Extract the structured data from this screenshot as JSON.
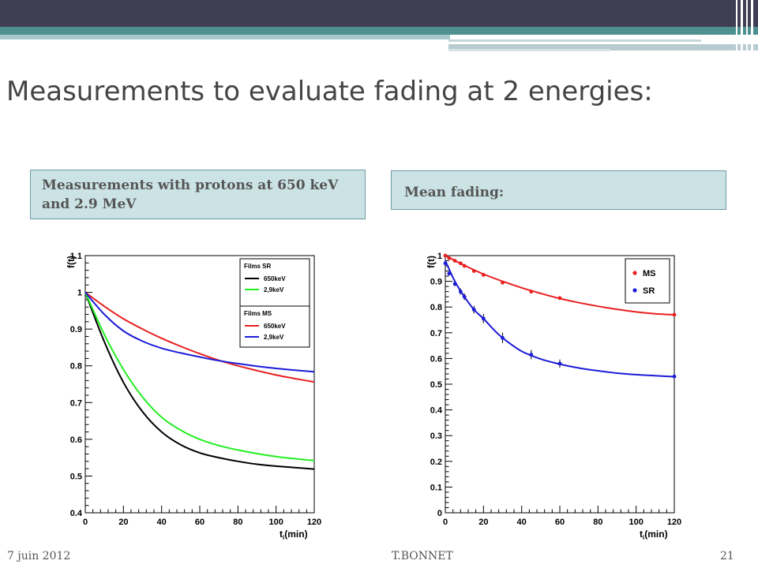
{
  "slide": {
    "title": "Measurements to evaluate fading at 2 energies:",
    "box_left": "Measurements with protons at 650 keV and 2.9 MeV",
    "box_right": "Mean fading:"
  },
  "footer": {
    "date": "7 juin 2012",
    "author": "T.BONNET",
    "page": "21"
  },
  "colors": {
    "topbar": "#3f3e52",
    "teal": "#4e8f8f",
    "box_fill": "#cce3e6",
    "black": "#000000",
    "green": "#22ee22",
    "red": "#e82020",
    "blue": "#1c1cd8"
  },
  "chart_data": [
    {
      "type": "line",
      "ylabel": "f(t)",
      "xlabel": "t_i(min)",
      "xlim": [
        0,
        120
      ],
      "ylim": [
        0.4,
        1.1
      ],
      "xticks": [
        "0",
        "20",
        "40",
        "60",
        "80",
        "100",
        "120"
      ],
      "yticks": [
        "0.4",
        "0.5",
        "0.6",
        "0.7",
        "0.8",
        "0.9",
        "1",
        "1.1"
      ],
      "legend_groups": [
        {
          "title": "Films SR",
          "entries": [
            "650keV",
            "2,9keV"
          ]
        },
        {
          "title": "Films MS",
          "entries": [
            "650keV",
            "2,9keV"
          ]
        }
      ],
      "series": [
        {
          "name": "650keV",
          "group": "Films SR",
          "color": "#000000",
          "x": [
            0,
            10,
            20,
            30,
            40,
            50,
            60,
            70,
            80,
            90,
            100,
            110,
            120
          ],
          "y": [
            1.0,
            0.865,
            0.755,
            0.675,
            0.62,
            0.585,
            0.563,
            0.55,
            0.54,
            0.532,
            0.527,
            0.523,
            0.519
          ]
        },
        {
          "name": "2,9keV",
          "group": "Films SR",
          "color": "#22ee22",
          "x": [
            0,
            10,
            20,
            30,
            40,
            50,
            60,
            70,
            80,
            90,
            100,
            110,
            120
          ],
          "y": [
            1.0,
            0.885,
            0.79,
            0.715,
            0.66,
            0.625,
            0.6,
            0.583,
            0.571,
            0.561,
            0.553,
            0.547,
            0.542
          ]
        },
        {
          "name": "650keV",
          "group": "Films MS",
          "color": "#e82020",
          "x": [
            0,
            10,
            20,
            30,
            40,
            50,
            60,
            70,
            80,
            90,
            100,
            110,
            120
          ],
          "y": [
            1.0,
            0.962,
            0.928,
            0.9,
            0.875,
            0.853,
            0.833,
            0.815,
            0.8,
            0.787,
            0.775,
            0.765,
            0.756
          ]
        },
        {
          "name": "2,9keV",
          "group": "Films MS",
          "color": "#1c1cd8",
          "x": [
            0,
            10,
            20,
            30,
            40,
            50,
            60,
            70,
            80,
            90,
            100,
            110,
            120
          ],
          "y": [
            1.0,
            0.94,
            0.895,
            0.867,
            0.848,
            0.835,
            0.824,
            0.814,
            0.806,
            0.799,
            0.793,
            0.788,
            0.784
          ]
        }
      ]
    },
    {
      "type": "scatter",
      "ylabel": "f(t)",
      "xlabel": "t_i(min)",
      "xlim": [
        0,
        120
      ],
      "ylim": [
        0,
        1
      ],
      "xticks": [
        "0",
        "20",
        "40",
        "60",
        "80",
        "100",
        "120"
      ],
      "yticks": [
        "0",
        "0.1",
        "0.2",
        "0.3",
        "0.4",
        "0.5",
        "0.6",
        "0.7",
        "0.8",
        "0.9",
        "1"
      ],
      "series": [
        {
          "name": "MS",
          "color": "#e82020",
          "x": [
            0,
            2,
            5,
            8,
            10,
            15,
            20,
            30,
            45,
            60,
            120
          ],
          "y": [
            1.0,
            0.99,
            0.98,
            0.97,
            0.96,
            0.94,
            0.925,
            0.895,
            0.86,
            0.835,
            0.77
          ],
          "err": [
            0.004,
            0.004,
            0.004,
            0.004,
            0.004,
            0.004,
            0.005,
            0.006,
            0.006,
            0.005,
            0.006
          ],
          "fit_x": [
            0,
            10,
            20,
            30,
            40,
            50,
            60,
            70,
            80,
            90,
            100,
            110,
            120
          ],
          "fit_y": [
            1.0,
            0.962,
            0.928,
            0.9,
            0.875,
            0.853,
            0.833,
            0.817,
            0.803,
            0.791,
            0.781,
            0.774,
            0.77
          ]
        },
        {
          "name": "SR",
          "color": "#1c1cd8",
          "x": [
            0,
            2,
            5,
            8,
            10,
            15,
            20,
            30,
            45,
            60,
            120
          ],
          "y": [
            0.97,
            0.93,
            0.89,
            0.86,
            0.84,
            0.79,
            0.755,
            0.68,
            0.615,
            0.58,
            0.53
          ],
          "err": [
            0.005,
            0.005,
            0.01,
            0.012,
            0.013,
            0.015,
            0.018,
            0.02,
            0.018,
            0.016,
            0.006
          ],
          "fit_x": [
            0,
            5,
            10,
            15,
            20,
            25,
            30,
            40,
            50,
            60,
            70,
            80,
            90,
            100,
            110,
            120
          ],
          "fit_y": [
            0.98,
            0.9,
            0.84,
            0.79,
            0.755,
            0.715,
            0.68,
            0.628,
            0.598,
            0.578,
            0.563,
            0.552,
            0.543,
            0.537,
            0.533,
            0.529
          ]
        }
      ]
    }
  ]
}
